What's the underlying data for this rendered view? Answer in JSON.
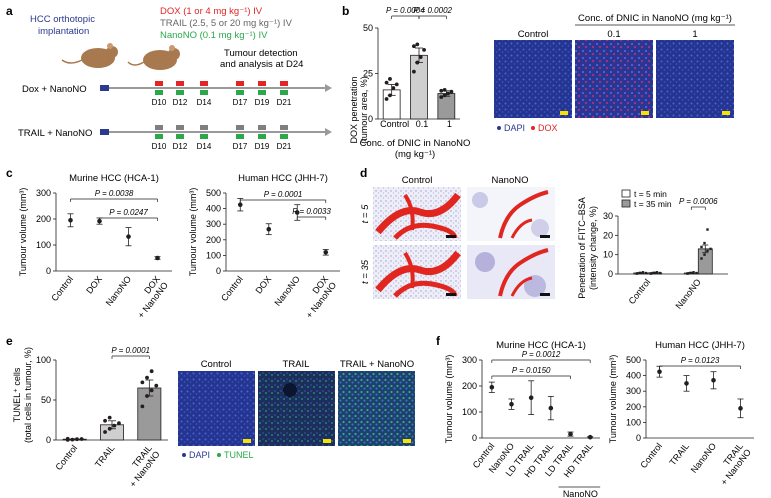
{
  "panels": {
    "a": {
      "letter": "a",
      "model_line1": "HCC orthotopic",
      "model_line2": "implantation",
      "dose_dox": "DOX (1 or 4 mg kg⁻¹) IV",
      "dose_trail": "TRAIL (2.5, 5 or 20 mg kg⁻¹) IV",
      "dose_nanono": "NanoNO (0.1 mg kg⁻¹) IV",
      "detect_line1": "Tumour detection",
      "detect_line2": "and analysis at D24",
      "group1": "Dox + NanoNO",
      "group2": "TRAIL + NanoNO",
      "days": [
        "D10",
        "D12",
        "D14",
        "D17",
        "D19",
        "D21"
      ],
      "colors": {
        "dox": "#e32526",
        "trail": "#7f7f7f",
        "nanono": "#2aa84a",
        "start": "#2b3990"
      }
    },
    "b": {
      "letter": "b",
      "ylabel_line1": "DOX penetration",
      "ylabel_line2": "(tumour area, %)",
      "xlabel_line1": "Conc. of DNIC in NanoNO",
      "xlabel_line2": "(mg kg⁻¹)",
      "p1": "P = 0.0004",
      "p2": "P = 0.0002",
      "img_title": "Conc. of DNIC in NanoNO (mg kg⁻¹)",
      "img_labels": [
        "Control",
        "0.1",
        "1"
      ],
      "legend_dapi": "DAPI",
      "legend_dox": "DOX"
    },
    "c": {
      "letter": "c",
      "p_h1": "P = 0.0038",
      "p_h2": "P = 0.0247",
      "p_m1": "P = 0.0001",
      "p_m2": "P = 0.0033"
    },
    "d": {
      "letter": "d",
      "col_control": "Control",
      "col_nanono": "NanoNO",
      "row1": "t = 5",
      "row2": "t = 35",
      "legend1": "t = 5 min",
      "legend2": "t = 35 min",
      "ylabel_line1": "Penetration of FITC–BSA",
      "ylabel_line2": "(intensity change, %)",
      "p": "P = 0.0006"
    },
    "e": {
      "letter": "e",
      "ylabel_line1": "TUNEL⁺ cells",
      "ylabel_line2": "(total cells in tumour, %)",
      "p": "P = 0.0001",
      "img_labels": [
        "Control",
        "TRAIL",
        "TRAIL + NanoNO"
      ],
      "legend_dapi": "DAPI",
      "legend_tunel": "TUNEL"
    },
    "f": {
      "letter": "f",
      "p1": "P = 0.0012",
      "p2": "P = 0.0150",
      "p3": "P = 0.0123",
      "nanono_bracket": "NanoNO"
    }
  },
  "chart_data": [
    {
      "id": "b",
      "type": "bar",
      "categories": [
        "Control",
        "0.1",
        "1"
      ],
      "values": [
        16,
        35,
        14
      ],
      "errors": [
        3,
        4,
        1.5
      ],
      "points": [
        [
          11,
          13,
          17,
          19,
          20,
          22
        ],
        [
          26,
          31,
          34,
          38,
          40,
          41
        ],
        [
          12,
          13,
          14,
          15,
          15.5,
          16
        ]
      ],
      "ylim": [
        0,
        50
      ],
      "yticks": [
        0,
        25,
        50
      ],
      "colors": [
        "#ffffff",
        "#cfcfcf",
        "#9a9a9a"
      ]
    },
    {
      "id": "c1",
      "type": "scatter",
      "title": "Murine HCC (HCA-1)",
      "ylabel": "Tumour volume (mm³)",
      "categories": [
        "Control",
        "DOX",
        "NanoNO",
        "DOX + NanoNO"
      ],
      "values": [
        195,
        192,
        132,
        50
      ],
      "errors": [
        25,
        12,
        35,
        5
      ],
      "ylim": [
        0,
        300
      ],
      "yticks": [
        0,
        100,
        200,
        300
      ]
    },
    {
      "id": "c2",
      "type": "scatter",
      "title": "Human HCC (JHH-7)",
      "ylabel": "Tumour volume (mm³)",
      "categories": [
        "Control",
        "DOX",
        "NanoNO",
        "DOX + NanoNO"
      ],
      "values": [
        425,
        268,
        375,
        120
      ],
      "errors": [
        40,
        35,
        50,
        18
      ],
      "ylim": [
        0,
        500
      ],
      "yticks": [
        0,
        100,
        200,
        300,
        400,
        500
      ]
    },
    {
      "id": "d",
      "type": "bar",
      "categories": [
        "Control",
        "NanoNO"
      ],
      "series": [
        {
          "name": "t = 5 min",
          "values": [
            0.5,
            0.5
          ],
          "errors": [
            0.3,
            0.3
          ]
        },
        {
          "name": "t = 35 min",
          "values": [
            0.6,
            13
          ],
          "errors": [
            0.3,
            2
          ]
        }
      ],
      "ylim": [
        0,
        30
      ],
      "yticks": [
        0,
        10,
        20,
        30
      ]
    },
    {
      "id": "e",
      "type": "bar",
      "categories": [
        "Control",
        "TRAIL",
        "TRAIL + NanoNO"
      ],
      "values": [
        1,
        19,
        65
      ],
      "errors": [
        0.5,
        5,
        10
      ],
      "points": [
        [
          0.2,
          0.5,
          1,
          1.2,
          1.5
        ],
        [
          10,
          14,
          18,
          21,
          24,
          28
        ],
        [
          42,
          55,
          62,
          68,
          72,
          78,
          86
        ]
      ],
      "ylim": [
        0,
        100
      ],
      "yticks": [
        0,
        50,
        100
      ],
      "colors": [
        "#ffffff",
        "#cfcfcf",
        "#9a9a9a"
      ]
    },
    {
      "id": "f1",
      "type": "scatter",
      "title": "Murine HCC (HCA-1)",
      "ylabel": "Tumour volume (mm³)",
      "categories": [
        "Control",
        "NanoNO",
        "LD TRAIL",
        "HD TRAIL",
        "LD TRAIL",
        "HD TRAIL"
      ],
      "values": [
        195,
        130,
        155,
        115,
        15,
        3
      ],
      "errors": [
        20,
        20,
        65,
        45,
        8,
        2
      ],
      "ylim": [
        0,
        300
      ],
      "yticks": [
        0,
        100,
        200,
        300
      ]
    },
    {
      "id": "f2",
      "type": "scatter",
      "title": "Human HCC (JHH-7)",
      "ylabel": "Tumour volume (mm³)",
      "categories": [
        "Control",
        "TRAIL",
        "NanoNO",
        "TRAIL + NanoNO"
      ],
      "values": [
        425,
        350,
        370,
        190
      ],
      "errors": [
        35,
        50,
        55,
        60
      ],
      "ylim": [
        0,
        500
      ],
      "yticks": [
        0,
        100,
        200,
        300,
        400,
        500
      ]
    }
  ]
}
